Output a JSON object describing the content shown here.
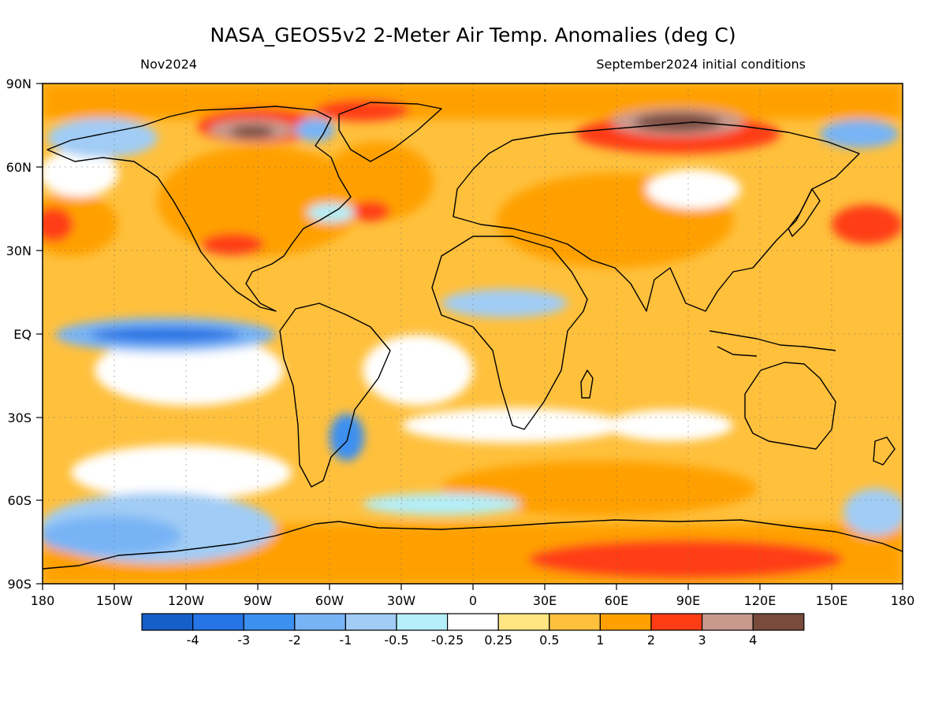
{
  "header": {
    "title": "NASA_GEOS5v2 2-Meter Air Temp. Anomalies (deg C)",
    "period": "Nov2024",
    "init": "September2024 initial conditions"
  },
  "axes": {
    "lat_labels": [
      "90N",
      "60N",
      "30N",
      "EQ",
      "30S",
      "60S",
      "90S"
    ],
    "lon_labels": [
      "180",
      "150W",
      "120W",
      "90W",
      "60W",
      "30W",
      "0",
      "30E",
      "60E",
      "90E",
      "120E",
      "150E",
      "180"
    ]
  },
  "colorbar": {
    "colors": [
      "#1560c8",
      "#2674e6",
      "#3c90f0",
      "#78b4f5",
      "#a0ccf5",
      "#b4eef8",
      "#ffffff",
      "#ffe682",
      "#ffc03c",
      "#ffa000",
      "#ff3c14",
      "#c89a8e",
      "#784b3c"
    ],
    "labels": [
      "-4",
      "-3",
      "-2",
      "-1",
      "-0.5",
      "-0.25",
      "0.25",
      "0.5",
      "1",
      "2",
      "3",
      "4"
    ]
  }
}
